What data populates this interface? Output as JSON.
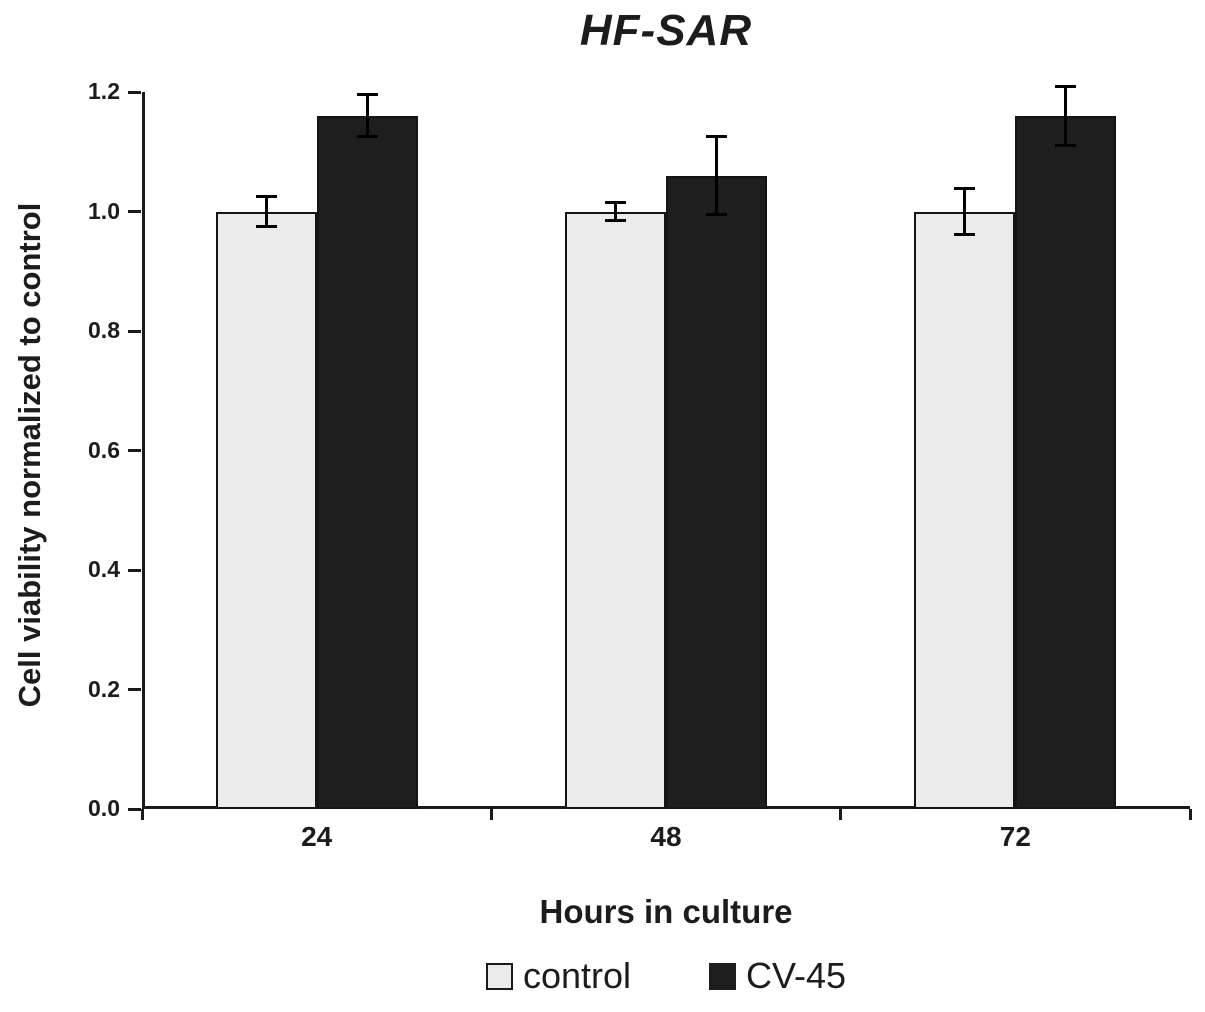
{
  "title": "HF-SAR",
  "axes": {
    "x_label": "Hours in culture",
    "y_label": "Cell viability normalized to control"
  },
  "legend": [
    {
      "label": "control",
      "color": "#ebebeb",
      "border": "#1a1a1a"
    },
    {
      "label": "CV-45",
      "color": "#1e1e1e",
      "border": "#1e1e1e"
    }
  ],
  "chart_data": {
    "type": "bar",
    "title": "HF-SAR",
    "xlabel": "Hours in culture",
    "ylabel": "Cell viability normalized to control",
    "categories": [
      "24",
      "48",
      "72"
    ],
    "series": [
      {
        "name": "control",
        "color": "#ebebeb",
        "values": [
          1.0,
          1.0,
          1.0
        ],
        "errors": [
          0.025,
          0.015,
          0.038
        ]
      },
      {
        "name": "CV-45",
        "color": "#1e1e1e",
        "values": [
          1.16,
          1.06,
          1.16
        ],
        "errors": [
          0.035,
          0.065,
          0.05
        ]
      }
    ],
    "ylim": [
      0.0,
      1.2
    ],
    "ytick_step": 0.2,
    "yticks": [
      "0.0",
      "0.2",
      "0.4",
      "0.6",
      "0.8",
      "1.0",
      "1.2"
    ],
    "grid": false,
    "error_bars": true,
    "legend_position": "bottom"
  }
}
